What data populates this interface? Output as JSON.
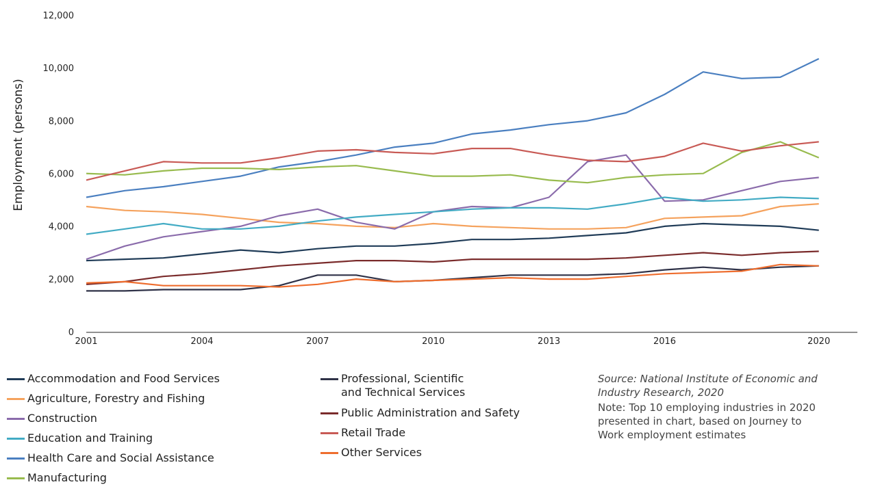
{
  "chart_data": {
    "type": "line",
    "ylabel": "Employment (persons)",
    "xlabel": "",
    "title": "",
    "xlim": [
      2001,
      2021
    ],
    "ylim": [
      0,
      12000
    ],
    "x_ticks": [
      2001,
      2004,
      2007,
      2010,
      2013,
      2016,
      2020
    ],
    "x_tick_labels": [
      "2001",
      "2004",
      "2007",
      "2010",
      "2013",
      "2016",
      "2020"
    ],
    "y_ticks": [
      0,
      2000,
      4000,
      6000,
      8000,
      10000,
      12000
    ],
    "y_tick_labels": [
      "0",
      "2,000",
      "4,000",
      "6,000",
      "8,000",
      "10,000",
      "12,000"
    ],
    "grid": false,
    "x": [
      2001,
      2002,
      2003,
      2004,
      2005,
      2006,
      2007,
      2008,
      2009,
      2010,
      2011,
      2012,
      2013,
      2014,
      2015,
      2016,
      2017,
      2018,
      2019,
      2020
    ],
    "series": [
      {
        "name": "Accommodation and Food Services",
        "color": "#1f3b57",
        "values": [
          2720,
          2770,
          2820,
          2970,
          3120,
          3020,
          3170,
          3270,
          3270,
          3370,
          3520,
          3520,
          3570,
          3670,
          3770,
          4020,
          4120,
          4070,
          4020,
          3870
        ]
      },
      {
        "name": "Agriculture, Forestry and Fishing",
        "color": "#f5a25d",
        "values": [
          4770,
          4620,
          4570,
          4470,
          4320,
          4170,
          4120,
          4020,
          3970,
          4120,
          4020,
          3970,
          3920,
          3920,
          3970,
          4320,
          4370,
          4420,
          4770,
          4870
        ]
      },
      {
        "name": "Construction",
        "color": "#8a6bab",
        "values": [
          2770,
          3270,
          3620,
          3820,
          4020,
          4420,
          4670,
          4170,
          3920,
          4570,
          4770,
          4720,
          5120,
          6470,
          6720,
          4970,
          5020,
          5370,
          5720,
          5870
        ]
      },
      {
        "name": "Education and Training",
        "color": "#42abc4",
        "values": [
          3720,
          3920,
          4120,
          3920,
          3920,
          4020,
          4220,
          4370,
          4470,
          4570,
          4670,
          4720,
          4720,
          4670,
          4870,
          5120,
          4970,
          5020,
          5120,
          5070
        ]
      },
      {
        "name": "Health Care and Social Assistance",
        "color": "#4a7fc0",
        "values": [
          5120,
          5370,
          5520,
          5720,
          5920,
          6270,
          6470,
          6720,
          7020,
          7170,
          7520,
          7670,
          7870,
          8020,
          8320,
          9020,
          9870,
          9620,
          9670,
          10370
        ]
      },
      {
        "name": "Manufacturing",
        "color": "#98bb4e",
        "values": [
          6020,
          5970,
          6120,
          6220,
          6220,
          6170,
          6270,
          6320,
          6120,
          5920,
          5920,
          5970,
          5770,
          5670,
          5870,
          5970,
          6020,
          6820,
          7220,
          6620
        ]
      },
      {
        "name": "Professional, Scientific\nand Technical Services",
        "color": "#2e3147",
        "values": [
          1570,
          1570,
          1620,
          1620,
          1620,
          1770,
          2170,
          2170,
          1920,
          1970,
          2070,
          2170,
          2170,
          2170,
          2220,
          2370,
          2470,
          2370,
          2470,
          2520
        ]
      },
      {
        "name": "Public Administration and Safety",
        "color": "#7a2b2b",
        "values": [
          1820,
          1920,
          2120,
          2220,
          2370,
          2520,
          2620,
          2720,
          2720,
          2670,
          2770,
          2770,
          2770,
          2770,
          2820,
          2920,
          3020,
          2920,
          3020,
          3070
        ]
      },
      {
        "name": "Retail Trade",
        "color": "#c85a55",
        "values": [
          5770,
          6120,
          6470,
          6420,
          6420,
          6620,
          6870,
          6920,
          6820,
          6770,
          6970,
          6970,
          6720,
          6520,
          6470,
          6670,
          7170,
          6870,
          7070,
          7220
        ]
      },
      {
        "name": "Other Services",
        "color": "#ee6d2e",
        "values": [
          1870,
          1920,
          1770,
          1770,
          1770,
          1720,
          1820,
          2020,
          1920,
          1970,
          2020,
          2070,
          2020,
          2020,
          2120,
          2220,
          2270,
          2320,
          2570,
          2520
        ]
      }
    ]
  },
  "notes": {
    "source": "Source: National Institute of Economic and\nIndustry Research, 2020",
    "note": "Note: Top 10 employing industries in 2020\npresented in chart, based on Journey to\nWork employment estimates"
  }
}
